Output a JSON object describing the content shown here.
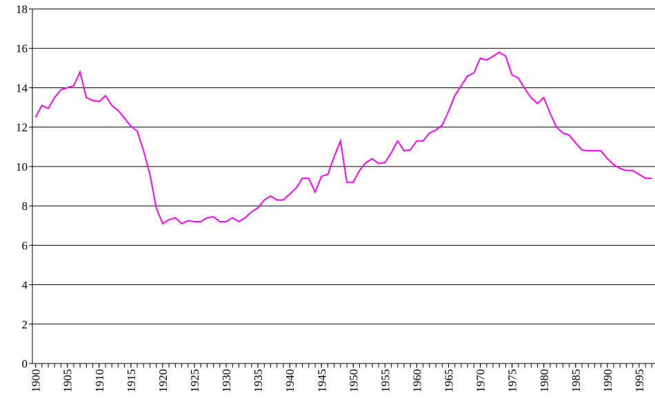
{
  "chart_data": {
    "type": "line",
    "x": [
      1900,
      1901,
      1902,
      1903,
      1904,
      1905,
      1906,
      1907,
      1908,
      1909,
      1910,
      1911,
      1912,
      1913,
      1914,
      1915,
      1916,
      1917,
      1918,
      1919,
      1920,
      1921,
      1922,
      1923,
      1924,
      1925,
      1926,
      1927,
      1928,
      1929,
      1930,
      1931,
      1932,
      1933,
      1934,
      1935,
      1936,
      1937,
      1938,
      1939,
      1940,
      1941,
      1942,
      1943,
      1944,
      1945,
      1946,
      1947,
      1948,
      1949,
      1950,
      1951,
      1952,
      1953,
      1954,
      1955,
      1956,
      1957,
      1958,
      1959,
      1960,
      1961,
      1962,
      1963,
      1964,
      1965,
      1966,
      1967,
      1968,
      1969,
      1970,
      1971,
      1972,
      1973,
      1974,
      1975,
      1976,
      1977,
      1978,
      1979,
      1980,
      1981,
      1982,
      1983,
      1984,
      1985,
      1986,
      1987,
      1988,
      1989,
      1990,
      1991,
      1992,
      1993,
      1994,
      1995,
      1996,
      1997
    ],
    "series": [
      {
        "color": "#ff00ff",
        "values": [
          12.5,
          13.1,
          12.95,
          13.5,
          13.9,
          14.0,
          14.1,
          14.8,
          13.5,
          13.35,
          13.3,
          13.6,
          13.1,
          12.85,
          12.45,
          12.05,
          11.8,
          10.8,
          9.6,
          7.9,
          7.1,
          7.3,
          7.4,
          7.1,
          7.25,
          7.2,
          7.2,
          7.4,
          7.45,
          7.2,
          7.2,
          7.4,
          7.2,
          7.4,
          7.7,
          7.9,
          8.3,
          8.5,
          8.3,
          8.3,
          8.6,
          8.9,
          9.4,
          9.4,
          8.7,
          9.5,
          9.6,
          10.5,
          11.3,
          9.2,
          9.2,
          9.8,
          10.2,
          10.4,
          10.15,
          10.2,
          10.7,
          11.3,
          10.8,
          10.85,
          11.3,
          11.3,
          11.7,
          11.85,
          12.1,
          12.8,
          13.6,
          14.1,
          14.6,
          14.75,
          15.5,
          15.4,
          15.6,
          15.8,
          15.6,
          14.65,
          14.5,
          13.95,
          13.5,
          13.2,
          13.5,
          12.7,
          12.0,
          11.7,
          11.6,
          11.2,
          10.85,
          10.8,
          10.8,
          10.8,
          10.4,
          10.1,
          9.9,
          9.8,
          9.8,
          9.6,
          9.4,
          9.4
        ]
      }
    ],
    "xlim": [
      1899.5,
      1997.5
    ],
    "xticks": [
      1900,
      1905,
      1910,
      1915,
      1920,
      1925,
      1930,
      1935,
      1940,
      1945,
      1950,
      1955,
      1960,
      1965,
      1970,
      1975,
      1980,
      1985,
      1990,
      1995
    ],
    "ylim": [
      0,
      18
    ],
    "yticks": [
      0,
      2,
      4,
      6,
      8,
      10,
      12,
      14,
      16,
      18
    ],
    "grid": true
  }
}
